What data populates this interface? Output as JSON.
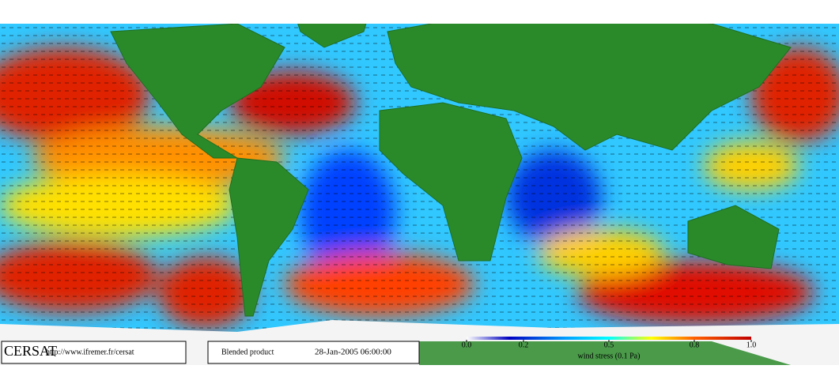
{
  "footer": {
    "logo": "CERSAT",
    "url": "http://www.ifremer.fr/cersat",
    "product": "Blended product",
    "timestamp": "28-Jan-2005 06:00:00"
  },
  "colorbar": {
    "label": "wind stress (0.1 Pa)",
    "lim": [
      0,
      1
    ],
    "ticks": [
      {
        "value": 0,
        "label": "0.0"
      },
      0.2,
      0.5,
      0.8,
      {
        "value": 1,
        "label": "1.0"
      }
    ]
  }
}
